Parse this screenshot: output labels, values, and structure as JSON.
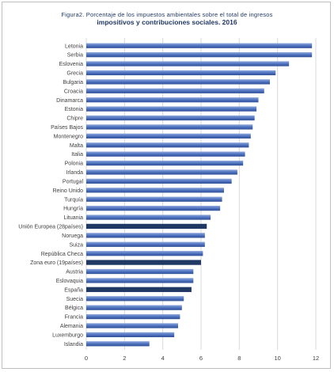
{
  "chart_data": {
    "type": "bar",
    "orientation": "horizontal",
    "title": "Figura2. Porcentaje de los impuestos ambientales sobre el total de ingresos",
    "subtitle": "impositivos y contribuciones sociales. 2016",
    "categories": [
      "Letonia",
      "Serbia",
      "Eslovenia",
      "Grecia",
      "Bulgaria",
      "Croacia",
      "Dinamarca",
      "Estonia",
      "Chipre",
      "Países Bajos",
      "Montenegro",
      "Malta",
      "Italia",
      "Polonia",
      "Irlanda",
      "Portugal",
      "Reino Unido",
      "Turquía",
      "Hungría",
      "Lituania",
      "Unión Europea (28países)",
      "Noruega",
      "Suiza",
      "República Checa",
      "Zona euro (19países)",
      "Austria",
      "Eslovaquia",
      "España",
      "Suecia",
      "Bélgica",
      "Francia",
      "Alemania",
      "Luxemburgo",
      "Islandia"
    ],
    "values": [
      11.8,
      11.8,
      10.6,
      9.9,
      9.6,
      9.3,
      9.0,
      8.9,
      8.8,
      8.7,
      8.6,
      8.5,
      8.3,
      8.2,
      7.9,
      7.6,
      7.2,
      7.1,
      7.0,
      6.5,
      6.3,
      6.2,
      6.2,
      6.1,
      6.0,
      5.6,
      5.6,
      5.5,
      5.1,
      5.0,
      4.9,
      4.8,
      4.6,
      3.3
    ],
    "highlight": [
      "Unión Europea (28países)",
      "Zona euro (19países)",
      "España"
    ],
    "xlim": [
      0,
      12
    ],
    "xticks": [
      "0",
      "2",
      "4",
      "6",
      "8",
      "10",
      "12"
    ],
    "grid": true,
    "colors": {
      "bar": "#4f72c0",
      "highlight": "#1f3864",
      "grid": "#d9d9d9"
    }
  }
}
